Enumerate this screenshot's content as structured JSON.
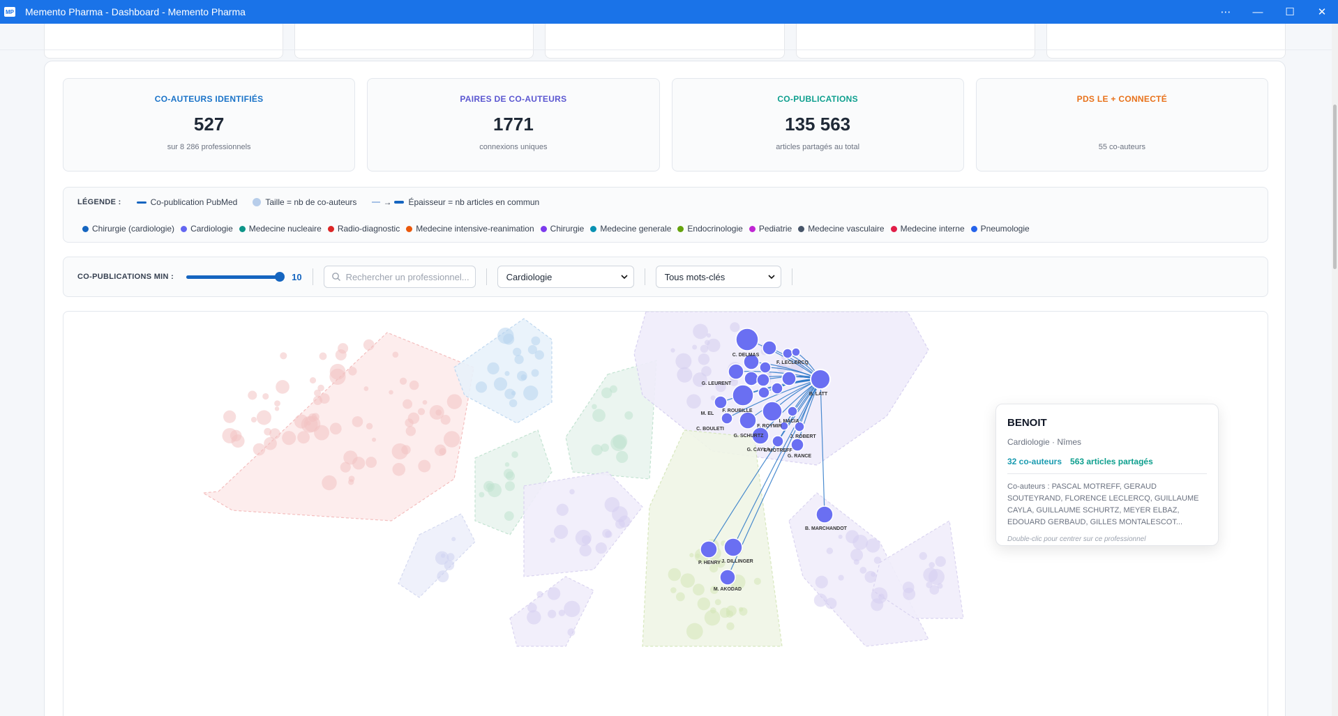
{
  "window": {
    "title": "Memento Pharma - Dashboard - Memento Pharma",
    "logo": "MP",
    "controls": [
      "⋯",
      "—",
      "☐",
      "✕"
    ]
  },
  "stats": [
    {
      "label": "CO-AUTEURS IDENTIFIÉS",
      "value": "527",
      "sub": "sur 8 286 professionnels",
      "color": "#1a73c8"
    },
    {
      "label": "PAIRES DE CO-AUTEURS",
      "value": "1771",
      "sub": "connexions uniques",
      "color": "#5b57d1"
    },
    {
      "label": "CO-PUBLICATIONS",
      "value": "135 563",
      "sub": "articles partagés au total",
      "color": "#0e9f8e"
    },
    {
      "label": "PDS LE + CONNECTÉ",
      "value": "",
      "sub": "55 co-auteurs",
      "color": "#e8711a"
    }
  ],
  "legend": {
    "title": "LÉGENDE :",
    "items": [
      "Co-publication PubMed",
      "Taille = nb de co-auteurs",
      "→",
      "Épaisseur = nb articles en commun"
    ],
    "specialties": [
      {
        "name": "Chirurgie (cardiologie)",
        "color": "#1565c0"
      },
      {
        "name": "Cardiologie",
        "color": "#6366f1"
      },
      {
        "name": "Medecine nucleaire",
        "color": "#0d9488"
      },
      {
        "name": "Radio-diagnostic",
        "color": "#dc2626"
      },
      {
        "name": "Medecine intensive-reanimation",
        "color": "#ea580c"
      },
      {
        "name": "Chirurgie",
        "color": "#7c3aed"
      },
      {
        "name": "Medecine generale",
        "color": "#0891b2"
      },
      {
        "name": "Endocrinologie",
        "color": "#65a30d"
      },
      {
        "name": "Pediatrie",
        "color": "#c026d3"
      },
      {
        "name": "Medecine vasculaire",
        "color": "#475569"
      },
      {
        "name": "Medecine interne",
        "color": "#e11d48"
      },
      {
        "name": "Pneumologie",
        "color": "#2563eb"
      }
    ]
  },
  "controls": {
    "min_label": "CO-PUBLICATIONS MIN :",
    "min_value": "10",
    "slider_fraction": 1.0,
    "search_placeholder": "Rechercher un professionnel...",
    "specialty_select": "Cardiologie",
    "keyword_select": "Tous mots-clés"
  },
  "graph": {
    "node_labels": [
      "C. DELMAS",
      "B. LATT",
      "F. ROUBILLE",
      "G. SCHURTZ",
      "G. CAYLA",
      "F. ROYMIR",
      "P. HENRY",
      "J. DILLINGER",
      "M. AKODAD",
      "B. MARCHANDOT",
      "G. LEURENT",
      "C. BOULETI",
      "M. EL",
      "T. MOTREFF",
      "G. RANCE",
      "J. ROBERT",
      "I. MACIA",
      "F. LECLERCQ"
    ]
  },
  "tooltip": {
    "name": "BENOIT",
    "meta": "Cardiologie · Nîmes",
    "coauthors": "32 co-auteurs",
    "articles": "563 articles partagés",
    "list": "Co-auteurs : PASCAL MOTREFF, GERAUD SOUTEYRAND, FLORENCE LECLERCQ, GUILLAUME CAYLA, GUILLAUME SCHURTZ, MEYER ELBAZ, EDOUARD GERBAUD, GILLES MONTALESCOT...",
    "hint": "Double-clic pour centrer sur ce professionnel"
  }
}
